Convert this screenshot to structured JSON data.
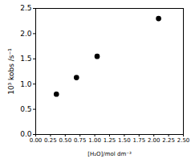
{
  "chart_data": {
    "type": "scatter",
    "x_label": "[H₂O]/mol dm⁻³",
    "y_label": "10³ kobs /s⁻¹",
    "x": [
      0.35,
      0.69,
      1.04,
      2.08
    ],
    "values": [
      0.8,
      1.13,
      1.55,
      2.3
    ],
    "color": "#000000",
    "marker": "circle",
    "xlim": [
      0,
      2.5
    ],
    "ylim": [
      0,
      2.5
    ],
    "xticks": [
      {
        "value": 0,
        "label": "0.00"
      },
      0.25,
      {
        "value": 0.5,
        "label": "0.50"
      },
      0.75,
      {
        "value": 1,
        "label": "1.00"
      },
      1.25,
      {
        "value": 1.5,
        "label": "1.50"
      },
      1.75,
      {
        "value": 2,
        "label": "2.00"
      },
      2.25,
      {
        "value": 2.5,
        "label": "2.50"
      }
    ],
    "yticks": [
      {
        "value": 0,
        "label": "0.0"
      },
      0.5,
      {
        "value": 1,
        "label": "1.0"
      },
      1.5,
      {
        "value": 2,
        "label": "2.0"
      },
      2.5
    ],
    "grid": false
  }
}
